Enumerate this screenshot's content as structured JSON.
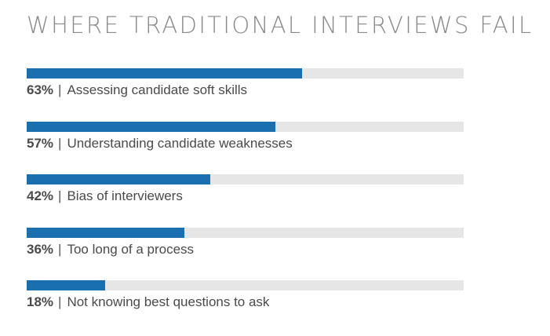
{
  "chart_data": {
    "type": "bar",
    "orientation": "horizontal",
    "title": "WHERE TRADITIONAL INTERVIEWS FAIL",
    "value_suffix": "%",
    "xlim": [
      0,
      100
    ],
    "bar_color": "#1a6fb0",
    "track_color": "#e6e6e6",
    "separator": "|",
    "bars": [
      {
        "value": 63,
        "label": "63%",
        "category": "Assessing candidate soft skills"
      },
      {
        "value": 57,
        "label": "57%",
        "category": "Understanding candidate weaknesses"
      },
      {
        "value": 42,
        "label": "42%",
        "category": "Bias of interviewers"
      },
      {
        "value": 36,
        "label": "36%",
        "category": "Too long of a process"
      },
      {
        "value": 18,
        "label": "18%",
        "category": "Not knowing best questions to ask"
      }
    ]
  }
}
